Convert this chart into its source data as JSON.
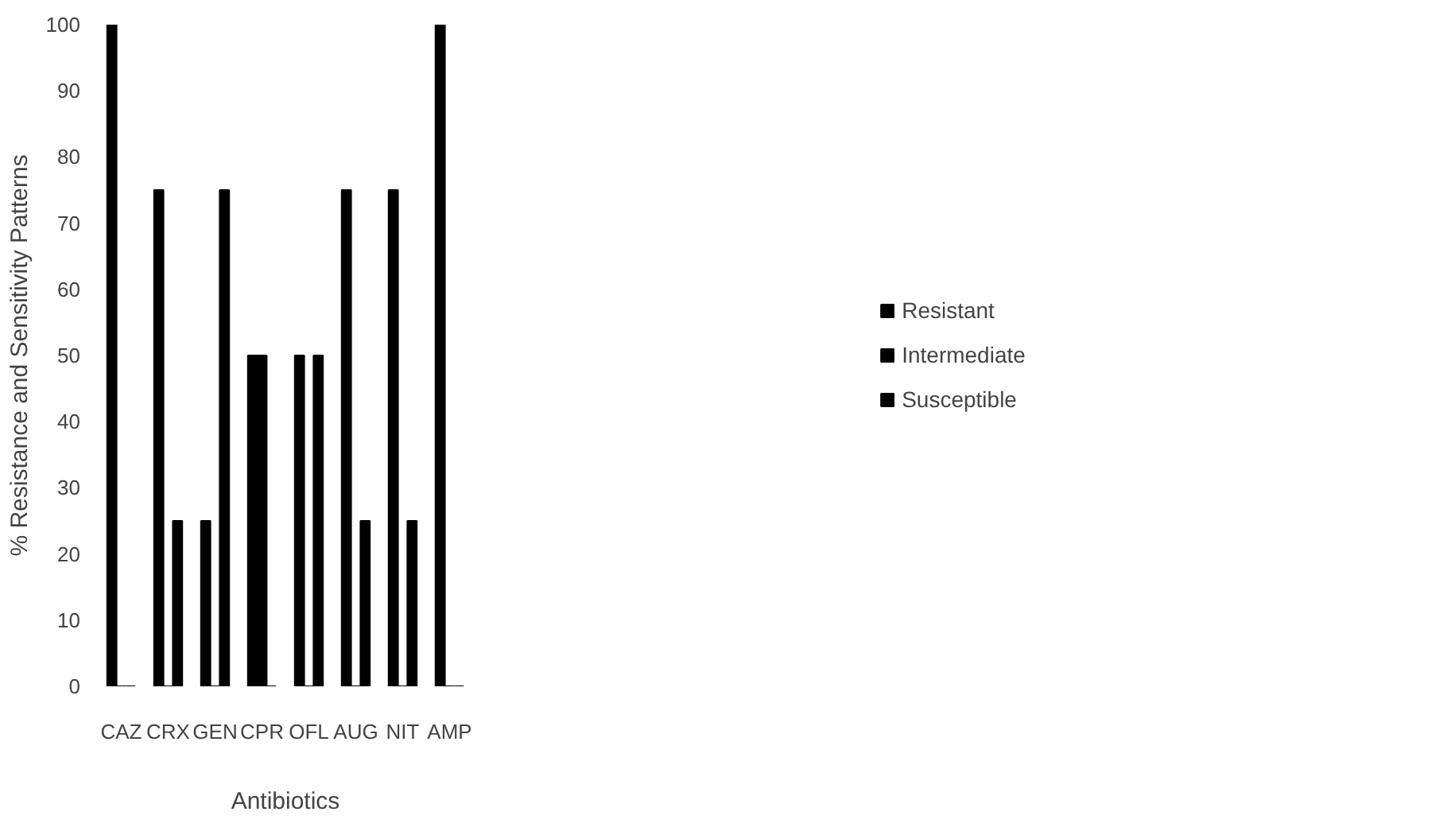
{
  "chart_data": {
    "type": "bar",
    "xlabel": "Antibiotics",
    "ylabel": "% Resistance and Sensitivity Patterns",
    "categories": [
      "CAZ",
      "CRX",
      "GEN",
      "CPR",
      "OFL",
      "AUG",
      "NIT",
      "AMP"
    ],
    "series": [
      {
        "name": "Resistant",
        "color": "#000000",
        "values": [
          100,
          75,
          25,
          50,
          50,
          75,
          75,
          100
        ]
      },
      {
        "name": "Intermediate",
        "color": "#000000",
        "values": [
          0,
          0,
          0,
          50,
          0,
          0,
          0,
          0
        ]
      },
      {
        "name": "Susceptible",
        "color": "#000000",
        "values": [
          0,
          25,
          75,
          0,
          50,
          25,
          25,
          0
        ]
      }
    ],
    "ylim": [
      0,
      100
    ],
    "yticks": [
      0,
      10,
      20,
      30,
      40,
      50,
      60,
      70,
      80,
      90,
      100
    ],
    "grid": false,
    "legend": "right"
  }
}
